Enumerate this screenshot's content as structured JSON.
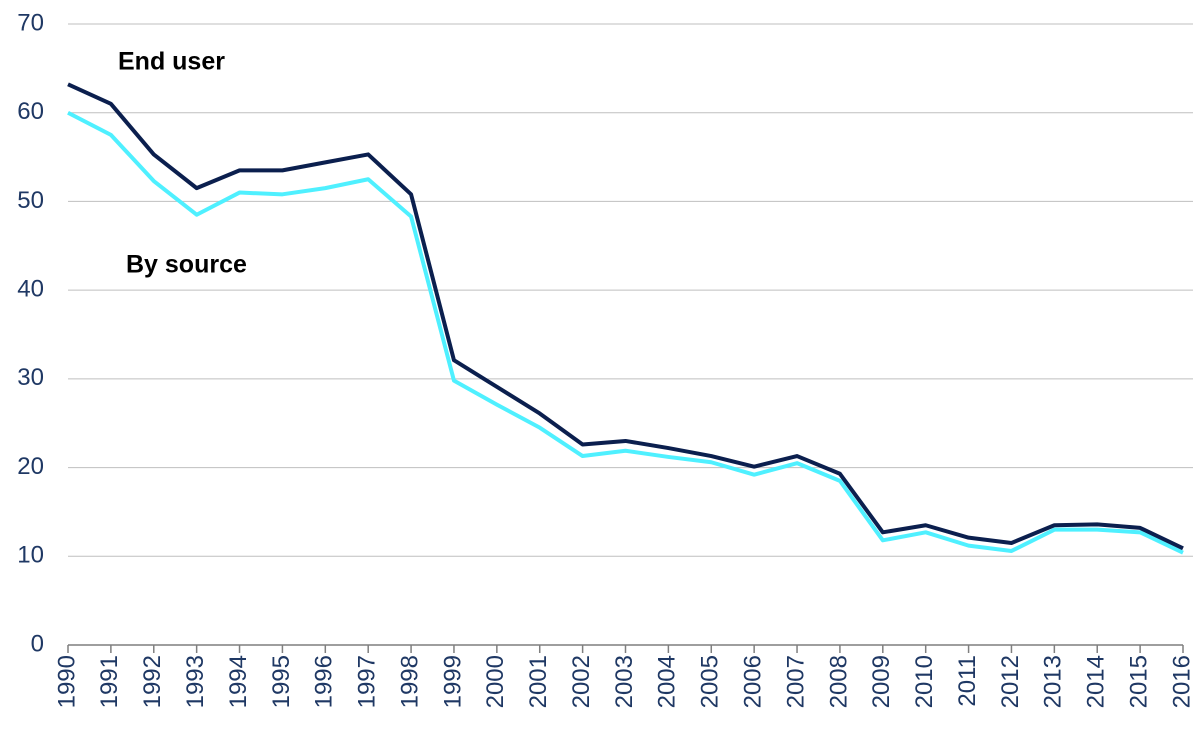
{
  "chart_data": {
    "type": "line",
    "x": [
      1990,
      1991,
      1992,
      1993,
      1994,
      1995,
      1996,
      1997,
      1998,
      1999,
      2000,
      2001,
      2002,
      2003,
      2004,
      2005,
      2006,
      2007,
      2008,
      2009,
      2010,
      2011,
      2012,
      2013,
      2014,
      2015,
      2016
    ],
    "series": [
      {
        "name": "End user",
        "color": "#0b1f4e",
        "values": [
          63.2,
          61.0,
          55.3,
          51.5,
          53.5,
          53.5,
          54.4,
          55.3,
          50.8,
          32.1,
          29.1,
          26.1,
          22.6,
          23.0,
          22.2,
          21.3,
          20.1,
          21.3,
          19.3,
          12.7,
          13.5,
          12.1,
          11.5,
          13.5,
          13.6,
          13.2,
          10.9
        ]
      },
      {
        "name": "By source",
        "color": "#4ff0ff",
        "values": [
          60.0,
          57.5,
          52.3,
          48.5,
          51.0,
          50.8,
          51.5,
          52.5,
          48.3,
          29.8,
          27.1,
          24.5,
          21.3,
          21.9,
          21.2,
          20.6,
          19.2,
          20.5,
          18.5,
          11.8,
          12.7,
          11.2,
          10.6,
          13.0,
          13.0,
          12.7,
          10.4
        ]
      }
    ],
    "xlim": [
      1990,
      2016
    ],
    "xticks": [
      1990,
      1991,
      1992,
      1993,
      1994,
      1995,
      1996,
      1997,
      1998,
      1999,
      2000,
      2001,
      2002,
      2003,
      2004,
      2005,
      2006,
      2007,
      2008,
      2009,
      2010,
      2011,
      2012,
      2013,
      2014,
      2015,
      2016
    ],
    "ylim": [
      0,
      70
    ],
    "yticks": [
      0,
      10,
      20,
      30,
      40,
      50,
      60,
      70
    ],
    "grid": true
  }
}
